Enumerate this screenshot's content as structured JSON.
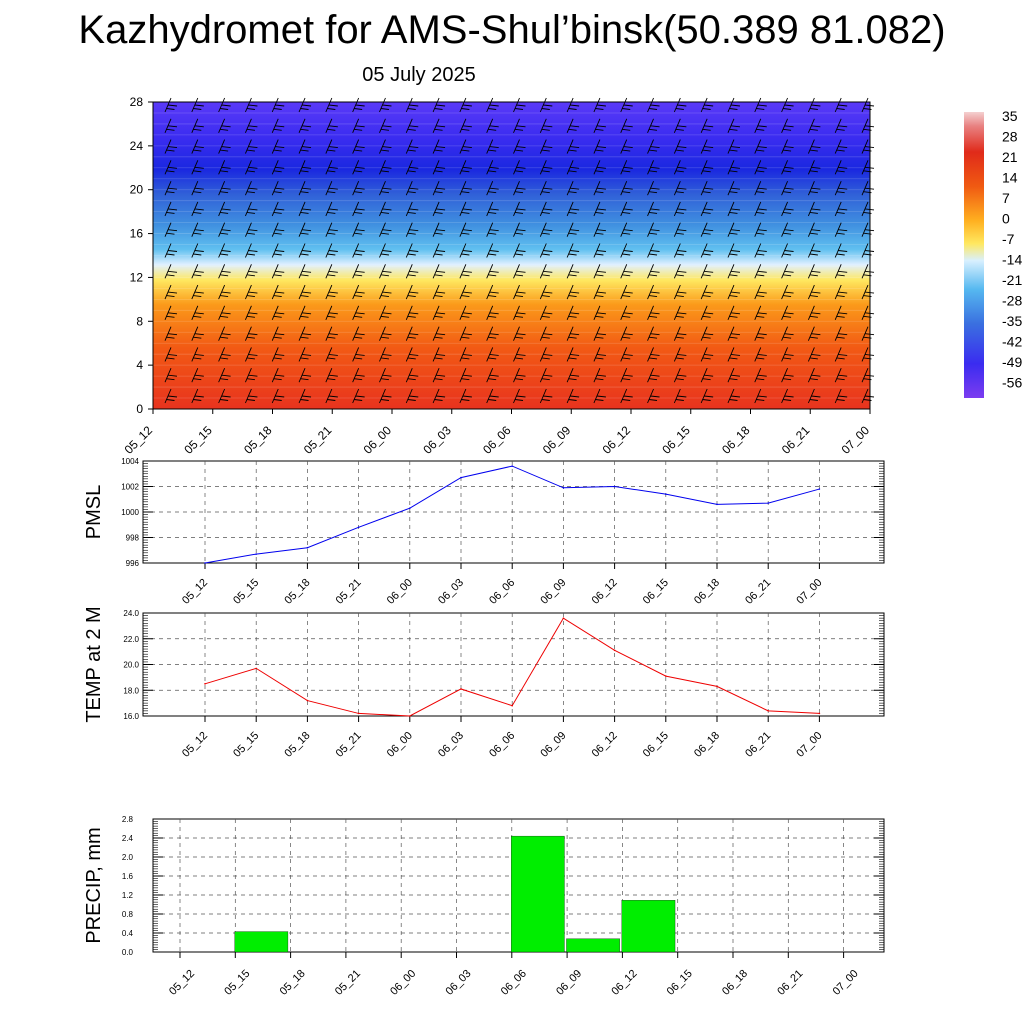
{
  "title": "Kazhydromet for AMS-Shul’binsk(50.389 81.082)",
  "subtitle": "05 July 2025",
  "colors": {
    "pmsl_line": "#0000ee",
    "temp_line": "#ee0000",
    "precip_bar": "#00ee00"
  },
  "chart_data": [
    {
      "type": "heatmap",
      "title": "",
      "x_ticks": [
        "05_12",
        "05_15",
        "05_18",
        "05_21",
        "06_00",
        "06_03",
        "06_06",
        "06_09",
        "06_12",
        "06_15",
        "06_18",
        "06_21",
        "07_00"
      ],
      "y_ticks": [
        0,
        4,
        8,
        12,
        16,
        20,
        24,
        28
      ],
      "ylim": [
        0,
        28
      ],
      "colorbar_labels": [
        "35",
        "28",
        "21",
        "14",
        "7",
        "0",
        "-7",
        "-14",
        "-21",
        "-28",
        "-35",
        "-42",
        "-49",
        "-56"
      ],
      "value_range": [
        -60,
        38
      ],
      "overlay": "wind barbs"
    },
    {
      "type": "line",
      "ylabel": "PMSL",
      "categories": [
        "05_12",
        "05_15",
        "05_18",
        "05_21",
        "06_00",
        "06_03",
        "06_06",
        "06_09",
        "06_12",
        "06_15",
        "06_18",
        "06_21",
        "07_00"
      ],
      "values": [
        996.0,
        996.7,
        997.2,
        998.8,
        1000.3,
        1002.7,
        1003.6,
        1001.9,
        1002.0,
        1001.4,
        1000.6,
        1000.7,
        1001.8
      ],
      "ylim": [
        996,
        1004
      ],
      "y_ticks": [
        "996",
        "998",
        "1000",
        "1002",
        "1004"
      ],
      "grid": true
    },
    {
      "type": "line",
      "ylabel": "TEMP at 2 M",
      "categories": [
        "05_12",
        "05_15",
        "05_18",
        "05_21",
        "06_00",
        "06_03",
        "06_06",
        "06_09",
        "06_12",
        "06_15",
        "06_18",
        "06_21",
        "07_00"
      ],
      "values": [
        18.5,
        19.7,
        17.2,
        16.2,
        16.0,
        18.1,
        16.8,
        23.6,
        21.1,
        19.1,
        18.3,
        16.4,
        16.2
      ],
      "ylim": [
        16,
        24
      ],
      "y_ticks": [
        "16.0",
        "18.0",
        "20.0",
        "22.0",
        "24.0"
      ],
      "grid": true
    },
    {
      "type": "bar",
      "ylabel": "PRECIP, mm",
      "categories": [
        "05_12",
        "05_15",
        "05_18",
        "05_21",
        "06_00",
        "06_03",
        "06_06",
        "06_09",
        "06_12",
        "06_15",
        "06_18",
        "06_21",
        "07_00"
      ],
      "values": [
        0,
        0.43,
        0,
        0,
        0,
        0,
        2.44,
        0.28,
        1.09,
        0,
        0,
        0,
        0
      ],
      "ylim": [
        0,
        2.8
      ],
      "y_ticks": [
        "0.0",
        "0.4",
        "0.8",
        "1.2",
        "1.6",
        "2.0",
        "2.4",
        "2.8"
      ],
      "grid": true
    }
  ]
}
